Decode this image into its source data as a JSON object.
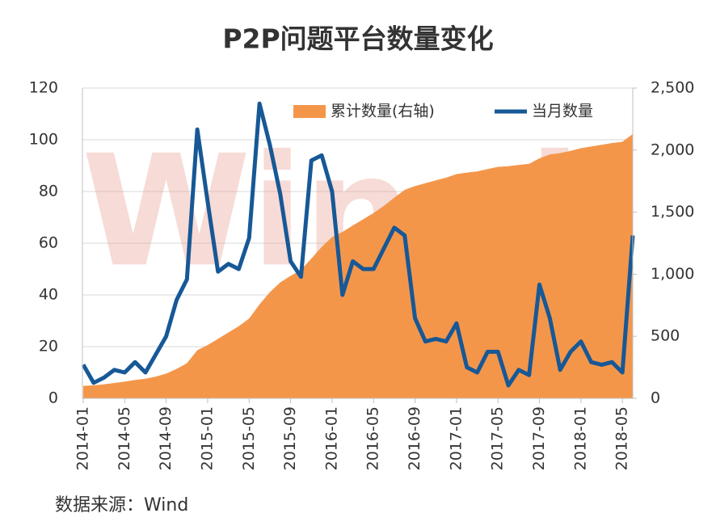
{
  "chart_data": {
    "type": "combo",
    "title": "P2P问题平台数量变化",
    "source": "数据来源：Wind",
    "watermark": "Win.d",
    "categories": [
      "2014-01",
      null,
      null,
      null,
      "2014-05",
      null,
      null,
      null,
      "2014-09",
      null,
      null,
      null,
      "2015-01",
      null,
      null,
      null,
      "2015-05",
      null,
      null,
      null,
      "2015-09",
      null,
      null,
      null,
      "2016-01",
      null,
      null,
      null,
      "2016-05",
      null,
      null,
      null,
      "2016-09",
      null,
      null,
      null,
      "2017-01",
      null,
      null,
      null,
      "2017-05",
      null,
      null,
      null,
      "2017-09",
      null,
      null,
      null,
      "2018-01",
      null,
      null,
      null,
      "2018-05",
      null
    ],
    "series": [
      {
        "name": "累计数量(右轴)",
        "kind": "area",
        "axis": "y2",
        "color": "#f4964a",
        "values": [
          100,
          105,
          113,
          124,
          134,
          148,
          158,
          175,
          199,
          237,
          283,
          387,
          430,
          479,
          531,
          581,
          643,
          757,
          855,
          934,
          987,
          1034,
          1126,
          1220,
          1300,
          1340,
          1393,
          1443,
          1493,
          1551,
          1617,
          1680,
          1711,
          1733,
          1756,
          1778,
          1807,
          1819,
          1829,
          1847,
          1865,
          1870,
          1881,
          1890,
          1934,
          1965,
          1976,
          1994,
          2016,
          2030,
          2043,
          2057,
          2067,
          2130
        ]
      },
      {
        "name": "当月数量",
        "kind": "line",
        "color": "#175896",
        "values": [
          13,
          6,
          8,
          11,
          10,
          14,
          10,
          17,
          24,
          38,
          46,
          104,
          76,
          49,
          52,
          50,
          62,
          114,
          98,
          79,
          53,
          47,
          92,
          94,
          80,
          40,
          53,
          50,
          50,
          58,
          66,
          63,
          31,
          22,
          23,
          22,
          29,
          12,
          10,
          18,
          18,
          5,
          11,
          9,
          44,
          31,
          11,
          18,
          22,
          14,
          13,
          14,
          10,
          63
        ]
      }
    ],
    "ylim": [
      0,
      120
    ],
    "yticks": [
      0,
      20,
      40,
      60,
      80,
      100,
      120
    ],
    "y2lim": [
      0,
      2500
    ],
    "y2ticks": [
      0,
      {
        "value": 500,
        "label": "500"
      },
      {
        "value": 1000,
        "label": "1,000"
      },
      {
        "value": 1500,
        "label": "1,500"
      },
      {
        "value": 2000,
        "label": "2,000"
      },
      {
        "value": 2500,
        "label": "2,500"
      }
    ],
    "grid": true,
    "legend": "top"
  }
}
